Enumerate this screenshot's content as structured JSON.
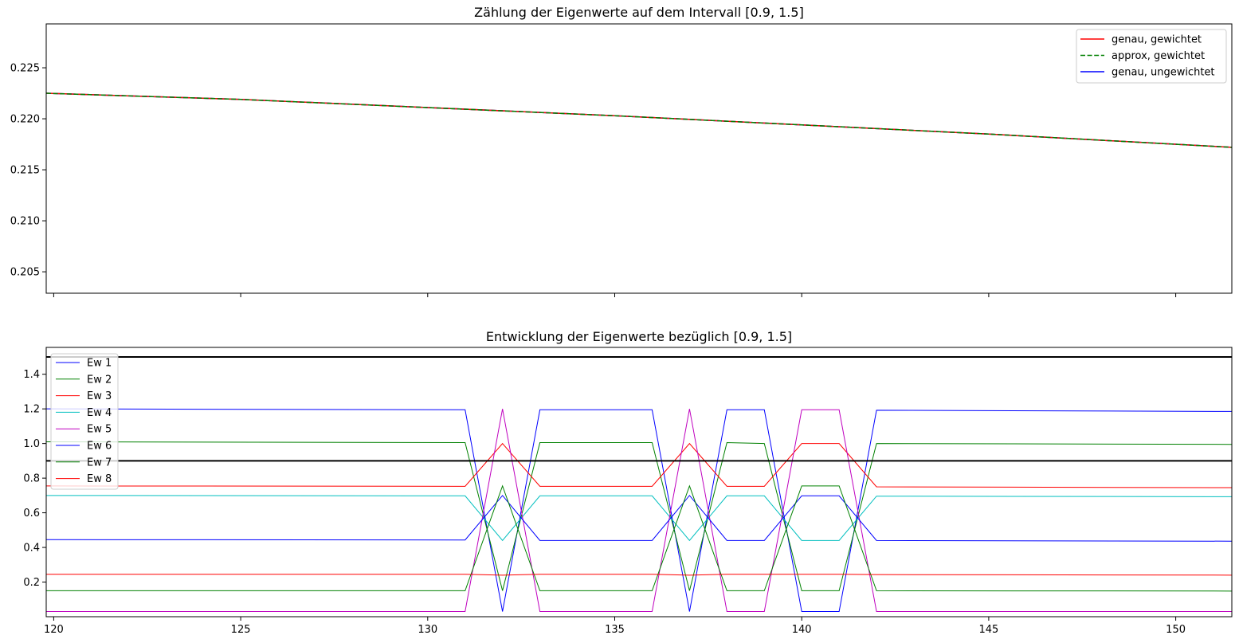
{
  "chart_data": [
    {
      "type": "line",
      "title": "Zählung der Eigenwerte auf dem Intervall [0.9, 1.5]",
      "xlabel": "",
      "ylabel": "",
      "xlim": [
        119.8,
        151.5
      ],
      "ylim": [
        0.2029,
        0.2293
      ],
      "yticks": [
        "0.205",
        "0.210",
        "0.215",
        "0.220",
        "0.225"
      ],
      "ytick_values": [
        0.205,
        0.21,
        0.215,
        0.22,
        0.225
      ],
      "xtick_values": [
        120,
        125,
        130,
        135,
        140,
        145,
        150
      ],
      "grid": false,
      "legend_position": "top-right",
      "series": [
        {
          "name": "genau, gewichtet",
          "color": "#ff0000",
          "style": "solid",
          "x": [
            119.8,
            125,
            130,
            135,
            140,
            145,
            151.5
          ],
          "y": [
            0.2225,
            0.2219,
            0.2211,
            0.2203,
            0.2194,
            0.2185,
            0.2172
          ]
        },
        {
          "name": "approx, gewichtet",
          "color": "#008000",
          "style": "dashed",
          "x": [
            119.8,
            125,
            130,
            135,
            140,
            145,
            151.5
          ],
          "y": [
            0.2225,
            0.2219,
            0.2211,
            0.2203,
            0.2194,
            0.2185,
            0.2172
          ]
        },
        {
          "name": "genau, ungewichtet",
          "color": "#0000ff",
          "style": "solid",
          "x": [
            119.8,
            125,
            130,
            135,
            140,
            145,
            151.5
          ],
          "y": [
            0.2225,
            0.2219,
            0.2211,
            0.2203,
            0.2194,
            0.2185,
            0.2172
          ]
        }
      ]
    },
    {
      "type": "line",
      "title": "Entwicklung der Eigenwerte bezüglich [0.9, 1.5]",
      "xlabel": "",
      "ylabel": "",
      "xlim": [
        119.8,
        151.5
      ],
      "ylim": [
        0.0,
        1.555
      ],
      "xticks": [
        "120",
        "125",
        "130",
        "135",
        "140",
        "145",
        "150"
      ],
      "xtick_values": [
        120,
        125,
        130,
        135,
        140,
        145,
        150
      ],
      "yticks": [
        "0.2",
        "0.4",
        "0.6",
        "0.8",
        "1.0",
        "1.2",
        "1.4"
      ],
      "ytick_values": [
        0.2,
        0.4,
        0.6,
        0.8,
        1.0,
        1.2,
        1.4
      ],
      "hlines": [
        0.9,
        1.5
      ],
      "grid": false,
      "legend_position": "top-left",
      "x": [
        119.8,
        131,
        132,
        133,
        136,
        137,
        138,
        139,
        140,
        141,
        142,
        151.5
      ],
      "series": [
        {
          "name": "Ew 1",
          "color": "#0000ff",
          "y": [
            1.2,
            1.195,
            0.03,
            1.195,
            1.195,
            0.03,
            1.195,
            1.195,
            0.03,
            0.03,
            1.192,
            1.185
          ]
        },
        {
          "name": "Ew 2",
          "color": "#008000",
          "y": [
            1.01,
            1.005,
            0.15,
            1.005,
            1.005,
            0.15,
            1.005,
            1.0,
            0.15,
            0.15,
            1.0,
            0.995
          ]
        },
        {
          "name": "Ew 3",
          "color": "#ff0000",
          "y": [
            0.755,
            0.753,
            1.0,
            0.753,
            0.753,
            1.0,
            0.753,
            0.753,
            1.0,
            1.0,
            0.75,
            0.745
          ]
        },
        {
          "name": "Ew 4",
          "color": "#00bfbf",
          "y": [
            0.7,
            0.698,
            0.44,
            0.698,
            0.698,
            0.44,
            0.698,
            0.698,
            0.44,
            0.44,
            0.696,
            0.693
          ]
        },
        {
          "name": "Ew 5",
          "color": "#bf00bf",
          "y": [
            0.03,
            0.03,
            1.2,
            0.03,
            0.03,
            1.2,
            0.03,
            0.03,
            1.195,
            1.195,
            0.03,
            0.03
          ]
        },
        {
          "name": "Ew 6",
          "color": "#0000ff",
          "y": [
            0.445,
            0.443,
            0.7,
            0.44,
            0.44,
            0.7,
            0.44,
            0.44,
            0.698,
            0.698,
            0.44,
            0.436
          ]
        },
        {
          "name": "Ew 7",
          "color": "#008000",
          "y": [
            0.15,
            0.15,
            0.755,
            0.15,
            0.15,
            0.755,
            0.15,
            0.15,
            0.755,
            0.755,
            0.15,
            0.148
          ]
        },
        {
          "name": "Ew 8",
          "color": "#ff0000",
          "y": [
            0.245,
            0.245,
            0.24,
            0.245,
            0.245,
            0.24,
            0.245,
            0.245,
            0.245,
            0.245,
            0.243,
            0.24
          ]
        }
      ]
    }
  ]
}
